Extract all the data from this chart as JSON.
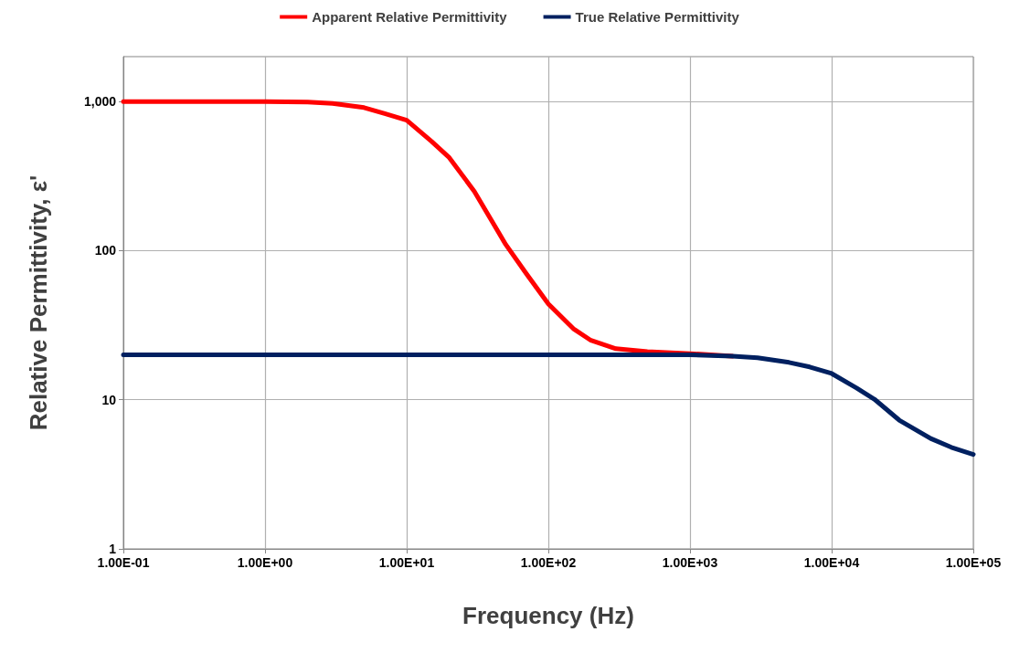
{
  "chart_data": {
    "type": "line",
    "xlabel": "Frequency (Hz)",
    "ylabel": "Relative Permittivity, ε'",
    "log": "xy",
    "grid": true,
    "legend": "top",
    "marker": "none",
    "line_style": "solid",
    "xlim": [
      0.1,
      100000
    ],
    "ylim": [
      1,
      2000
    ],
    "xticks": [
      {
        "value": 0.1,
        "label": "1.00E-01"
      },
      {
        "value": 1,
        "label": "1.00E+00"
      },
      {
        "value": 10,
        "label": "1.00E+01"
      },
      {
        "value": 100,
        "label": "1.00E+02"
      },
      {
        "value": 1000,
        "label": "1.00E+03"
      },
      {
        "value": 10000,
        "label": "1.00E+04"
      },
      {
        "value": 100000,
        "label": "1.00E+05"
      }
    ],
    "yticks": [
      1,
      10,
      100,
      {
        "value": 1000,
        "label": "1,000"
      }
    ],
    "x": [
      0.1,
      1,
      2,
      3,
      5,
      7,
      10,
      15,
      20,
      30,
      50,
      70,
      100,
      150,
      200,
      300,
      500,
      1000,
      2000,
      3000,
      5000,
      7000,
      10000,
      15000,
      20000,
      30000,
      50000,
      70000,
      100000
    ],
    "series": [
      {
        "name": "Apparent Relative Permittivity",
        "color": "#ff0000",
        "values": [
          1000,
          1000,
          990,
          970,
          910,
          830,
          750,
          540,
          420,
          250,
          110,
          70,
          44,
          30,
          25,
          22,
          21,
          20.4,
          19.6,
          null,
          null,
          null,
          null,
          null,
          null,
          null,
          null,
          null,
          null
        ]
      },
      {
        "name": "True Relative Permittivity",
        "color": "#002060",
        "values": [
          20,
          20,
          20,
          20,
          20,
          20,
          20,
          20,
          20,
          20,
          20,
          20,
          20,
          20,
          20,
          20,
          20,
          20,
          19.6,
          19.1,
          17.8,
          16.6,
          15,
          12,
          10.1,
          7.3,
          5.5,
          4.8,
          4.3
        ]
      }
    ]
  }
}
